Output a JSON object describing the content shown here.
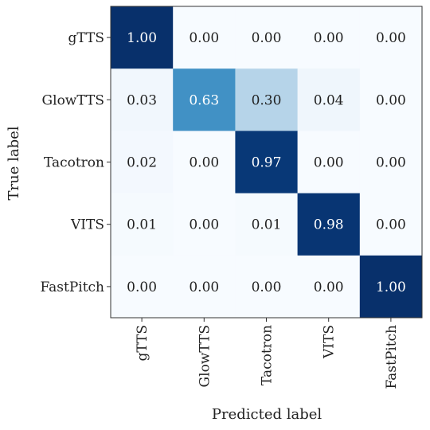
{
  "chart_data": {
    "type": "heatmap",
    "title": "",
    "xlabel": "Predicted label",
    "ylabel": "True label",
    "x_categories": [
      "gTTS",
      "GlowTTS",
      "Tacotron",
      "VITS",
      "FastPitch"
    ],
    "y_categories": [
      "gTTS",
      "GlowTTS",
      "Tacotron",
      "VITS",
      "FastPitch"
    ],
    "matrix": [
      [
        1.0,
        0.0,
        0.0,
        0.0,
        0.0
      ],
      [
        0.03,
        0.63,
        0.3,
        0.04,
        0.0
      ],
      [
        0.02,
        0.0,
        0.97,
        0.0,
        0.0
      ],
      [
        0.01,
        0.0,
        0.01,
        0.98,
        0.0
      ],
      [
        0.0,
        0.0,
        0.0,
        0.0,
        1.0
      ]
    ],
    "labels": [
      [
        "1.00",
        "0.00",
        "0.00",
        "0.00",
        "0.00"
      ],
      [
        "0.03",
        "0.63",
        "0.30",
        "0.04",
        "0.00"
      ],
      [
        "0.02",
        "0.00",
        "0.97",
        "0.00",
        "0.00"
      ],
      [
        "0.01",
        "0.00",
        "0.01",
        "0.98",
        "0.00"
      ],
      [
        "0.00",
        "0.00",
        "0.00",
        "0.00",
        "1.00"
      ]
    ],
    "colormap": "Blues",
    "value_range": [
      0,
      1
    ],
    "colors": {
      "low": "#f7fbff",
      "high": "#08306b",
      "text_dark": "#222222",
      "text_light": "#ffffff"
    }
  }
}
